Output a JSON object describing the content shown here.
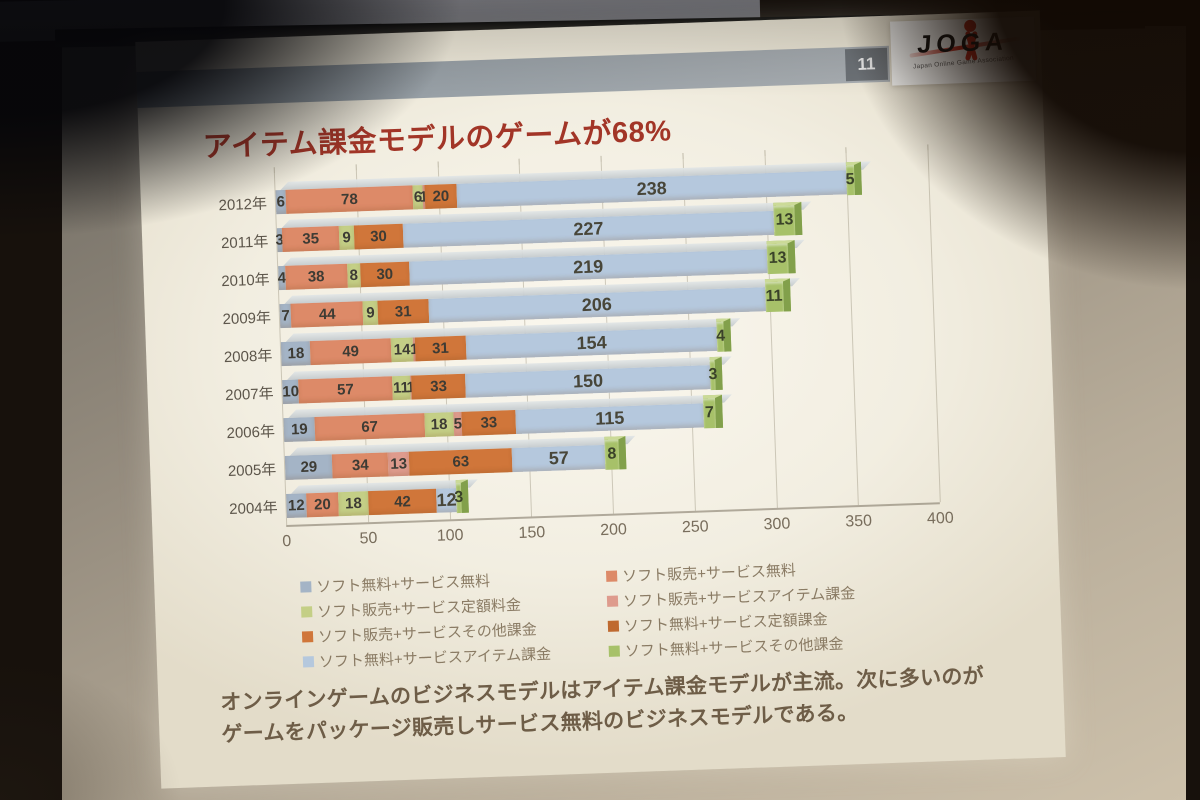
{
  "slide": {
    "page_number": "11",
    "logo": {
      "text": "JOGA",
      "subtext": "Japan Online Game Association"
    },
    "title": "アイテム課金モデルのゲームが68%",
    "footer_lines": [
      "オンラインゲームのビジネスモデルはアイテム課金モデルが主流。次に多いのが",
      "ゲームをパッケージ販売しサービス無料のビジネスモデルである。"
    ]
  },
  "chart_data": {
    "type": "bar",
    "stacked": true,
    "orientation": "horizontal",
    "categories": [
      "2012年",
      "2011年",
      "2010年",
      "2009年",
      "2008年",
      "2007年",
      "2006年",
      "2005年",
      "2004年"
    ],
    "series": [
      {
        "name": "ソフト無料+サービス無料",
        "color": "#a4b4c6",
        "values": [
          6,
          3,
          4,
          7,
          18,
          10,
          19,
          29,
          12
        ]
      },
      {
        "name": "ソフト販売+サービス無料",
        "color": "#dd8a68",
        "values": [
          78,
          35,
          38,
          44,
          49,
          57,
          67,
          34,
          20
        ]
      },
      {
        "name": "ソフト販売+サービス定額料金",
        "color": "#c4cf86",
        "values": [
          6,
          9,
          8,
          9,
          14,
          11,
          18,
          0,
          18
        ]
      },
      {
        "name": "ソフト販売+サービスアイテム課金",
        "color": "#de9b8d",
        "values": [
          1,
          0,
          0,
          0,
          1,
          1,
          5,
          13,
          0
        ]
      },
      {
        "name": "ソフト販売+サービスその他課金",
        "color": "#d0763a",
        "values": [
          20,
          30,
          30,
          31,
          31,
          33,
          33,
          63,
          42
        ]
      },
      {
        "name": "ソフト無料+サービス定額課金",
        "color": "#bf6a30",
        "values": [
          0,
          0,
          0,
          0,
          0,
          0,
          0,
          0,
          0
        ]
      },
      {
        "name": "ソフト無料+サービスアイテム課金",
        "color": "#b5c8dd",
        "values": [
          238,
          227,
          219,
          206,
          154,
          150,
          115,
          57,
          12
        ]
      },
      {
        "name": "ソフト無料+サービスその他課金",
        "color": "#a7c169",
        "values": [
          5,
          13,
          13,
          11,
          4,
          3,
          7,
          8,
          3
        ]
      }
    ],
    "totals": [
      354,
      317,
      312,
      308,
      271,
      265,
      264,
      204,
      107
    ],
    "x_ticks": [
      0,
      50,
      100,
      150,
      200,
      250,
      300,
      350,
      400
    ],
    "xlim": [
      0,
      400
    ],
    "grid": true,
    "legend_position": "bottom"
  }
}
